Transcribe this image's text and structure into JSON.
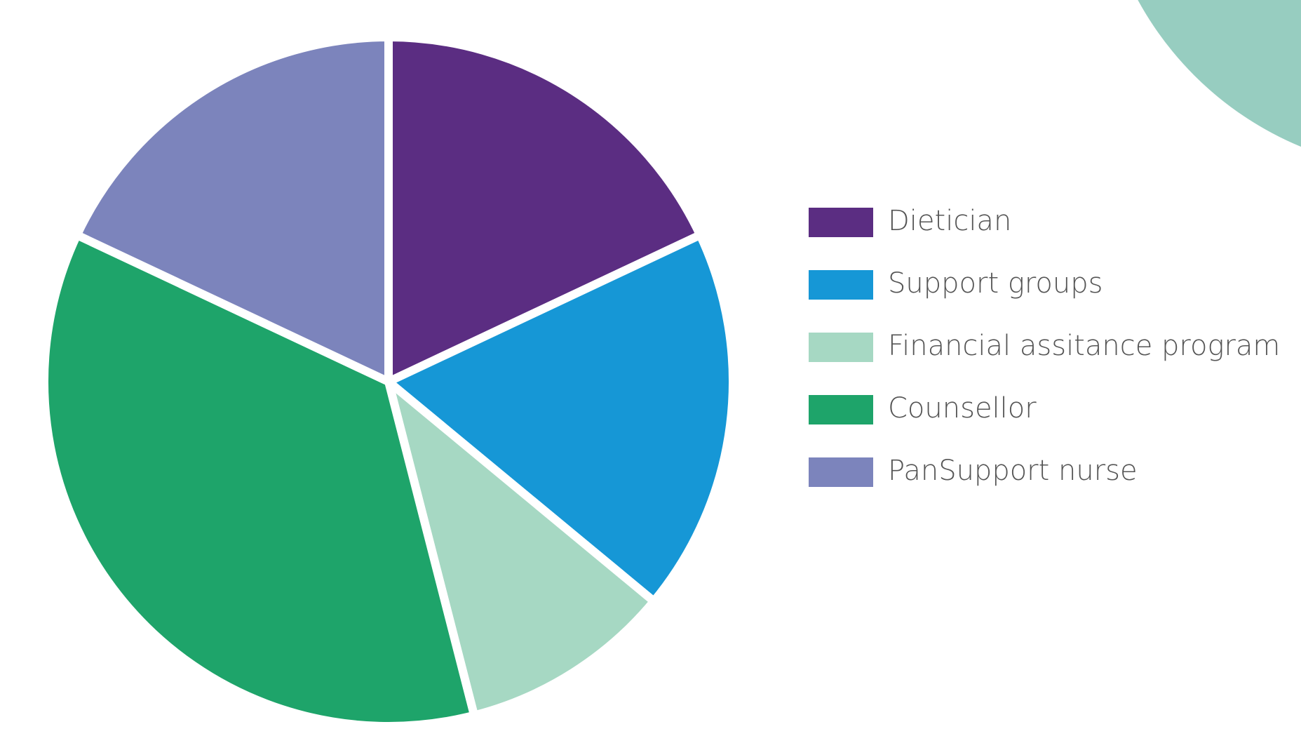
{
  "chart_data": {
    "type": "pie",
    "categories": [
      "Dietician",
      "Support groups",
      "Financial assitance program",
      "Counsellor",
      "PanSupport nurse"
    ],
    "values": [
      18,
      18,
      10,
      36,
      18
    ],
    "colors": [
      "#5b2d82",
      "#1697d6",
      "#a6d8c3",
      "#1ea46a",
      "#7c84bc"
    ],
    "legend": "right"
  }
}
